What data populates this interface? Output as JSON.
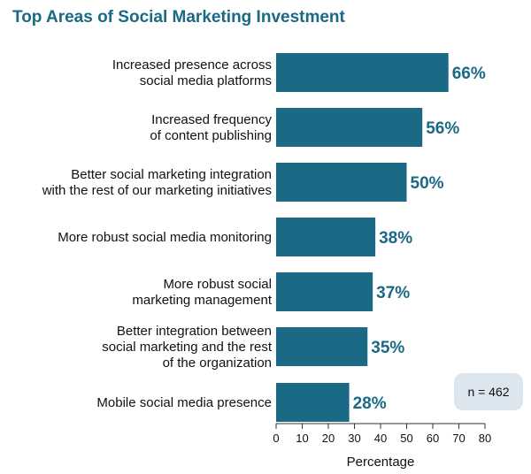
{
  "colors": {
    "accent": "#1a6985",
    "title": "#1a6985",
    "note_background": "#dce6ee",
    "axis": "#333333"
  },
  "note": "n = 462",
  "chart_data": {
    "type": "bar",
    "orientation": "horizontal",
    "title": "Top Areas of Social Marketing Investment",
    "xlabel": "Percentage",
    "ylabel": "",
    "xlim": [
      0,
      80
    ],
    "xticks": [
      0,
      10,
      20,
      30,
      40,
      50,
      60,
      70,
      80
    ],
    "grid": false,
    "categories": [
      [
        "Increased presence across",
        "social media platforms"
      ],
      [
        "Increased frequency",
        "of content publishing"
      ],
      [
        "Better social marketing integration",
        "with the rest of our marketing initiatives"
      ],
      [
        "More robust social media monitoring"
      ],
      [
        "More robust social",
        "marketing management"
      ],
      [
        "Better integration between",
        "social marketing and the rest",
        "of the organization"
      ],
      [
        "Mobile social media presence"
      ]
    ],
    "values": [
      66,
      56,
      50,
      38,
      37,
      35,
      28
    ],
    "value_labels": [
      "66%",
      "56%",
      "50%",
      "38%",
      "37%",
      "35%",
      "28%"
    ]
  }
}
